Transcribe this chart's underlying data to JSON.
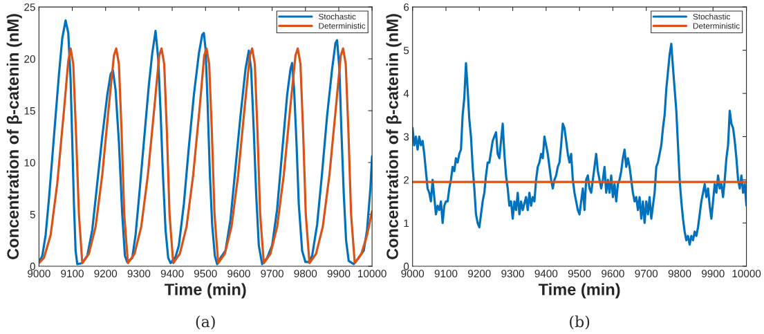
{
  "chart_data": [
    {
      "type": "line",
      "xlabel": "Time (min)",
      "ylabel": "Concentration of β-catenin (nM)",
      "xlim": [
        9000,
        10000
      ],
      "ylim": [
        0,
        25
      ],
      "xticks": [
        9000,
        9100,
        9200,
        9300,
        9400,
        9500,
        9600,
        9700,
        9800,
        9900,
        10000
      ],
      "yticks": [
        0,
        5,
        10,
        15,
        20,
        25
      ],
      "grid": false,
      "legend": "top right",
      "line_style": "solid",
      "marker": "none",
      "annotations": [
        "(a)"
      ],
      "series": [
        {
          "name": "Stochastic",
          "color": "#0072bd",
          "x": [
            9000,
            9010,
            9020,
            9030,
            9040,
            9050,
            9060,
            9070,
            9080,
            9088,
            9095,
            9100,
            9105,
            9110,
            9115,
            9130,
            9145,
            9160,
            9175,
            9190,
            9205,
            9215,
            9222,
            9230,
            9240,
            9250,
            9258,
            9265,
            9280,
            9290,
            9300,
            9315,
            9330,
            9340,
            9350,
            9358,
            9365,
            9372,
            9380,
            9388,
            9395,
            9410,
            9420,
            9435,
            9450,
            9465,
            9480,
            9490,
            9495,
            9500,
            9506,
            9513,
            9520,
            9528,
            9535,
            9545,
            9560,
            9575,
            9590,
            9605,
            9620,
            9630,
            9637,
            9645,
            9652,
            9660,
            9670,
            9685,
            9700,
            9715,
            9730,
            9745,
            9755,
            9760,
            9766,
            9773,
            9780,
            9790,
            9800,
            9810,
            9820,
            9835,
            9850,
            9865,
            9880,
            9890,
            9895,
            9902,
            9908,
            9915,
            9922,
            9930,
            9945,
            9960,
            9975,
            9985,
            9995,
            10000
          ],
          "values": [
            0.4,
            1,
            3,
            6.5,
            10.5,
            14.5,
            18.5,
            22,
            23.7,
            22.5,
            18,
            12,
            6,
            1.5,
            0.2,
            0.3,
            1,
            3.5,
            8,
            12.5,
            16.5,
            18.5,
            18.9,
            17,
            12,
            5,
            1,
            0.4,
            0.8,
            3,
            6.5,
            12,
            17.5,
            20.5,
            22.7,
            20,
            15,
            9,
            3.5,
            0.8,
            0.3,
            0.9,
            2,
            6,
            11.5,
            16.5,
            20.5,
            22.3,
            22.5,
            21,
            16,
            9,
            4,
            1,
            0.2,
            0.8,
            1.5,
            4.5,
            9.5,
            14.5,
            19,
            20.8,
            19,
            13,
            7,
            2,
            0.2,
            0.8,
            2,
            5.5,
            11,
            16.5,
            19,
            19.6,
            17,
            12,
            6,
            1.5,
            0.4,
            0.4,
            1,
            4,
            9,
            14.5,
            19,
            21.5,
            21.8,
            19,
            13,
            7,
            2.5,
            0.5,
            0.2,
            0.8,
            1.5,
            3.5,
            7.5,
            10.6
          ]
        },
        {
          "name": "Deterministic",
          "color": "#d95319",
          "x": [
            9000,
            9015,
            9035,
            9055,
            9075,
            9088,
            9095,
            9103,
            9111,
            9120,
            9130,
            9150,
            9170,
            9190,
            9210,
            9225,
            9232,
            9240,
            9248,
            9256,
            9267,
            9287,
            9307,
            9327,
            9347,
            9361,
            9368,
            9376,
            9384,
            9392,
            9403,
            9423,
            9443,
            9463,
            9483,
            9496,
            9503,
            9511,
            9519,
            9527,
            9538,
            9558,
            9578,
            9598,
            9618,
            9633,
            9640,
            9648,
            9656,
            9664,
            9675,
            9695,
            9715,
            9735,
            9755,
            9770,
            9777,
            9785,
            9793,
            9801,
            9812,
            9832,
            9852,
            9872,
            9892,
            9906,
            9913,
            9921,
            9929,
            9937,
            9948,
            9968,
            9985,
            10000
          ],
          "values": [
            0.3,
            0.8,
            3,
            8,
            15,
            19.8,
            21,
            19.5,
            13,
            5,
            0.3,
            1.2,
            3.8,
            8.8,
            15.5,
            20.3,
            21,
            19.5,
            13,
            5,
            0.3,
            1.2,
            3.8,
            8.8,
            15.5,
            20.3,
            21,
            19.5,
            13,
            5,
            0.3,
            1.2,
            3.8,
            8.8,
            15.5,
            20.3,
            21,
            19.5,
            13,
            5,
            0.3,
            1.2,
            3.8,
            8.8,
            15.5,
            20.3,
            21,
            19.5,
            13,
            5,
            0.3,
            1.2,
            3.8,
            8.8,
            15.5,
            20.3,
            21,
            19.5,
            13,
            5,
            0.3,
            1.2,
            3.8,
            8.8,
            15.5,
            20.3,
            21,
            19.5,
            13,
            5,
            0.3,
            1.2,
            3,
            5.3
          ]
        }
      ]
    },
    {
      "type": "line",
      "xlabel": "Time (min)",
      "ylabel": "Concentration of β-catenin (nM)",
      "xlim": [
        9000,
        10000
      ],
      "ylim": [
        0,
        6
      ],
      "xticks": [
        9000,
        9100,
        9200,
        9300,
        9400,
        9500,
        9600,
        9700,
        9800,
        9900,
        10000
      ],
      "yticks": [
        0,
        1,
        2,
        3,
        4,
        5,
        6
      ],
      "grid": false,
      "legend": "top right",
      "line_style": "solid",
      "marker": "none",
      "annotations": [
        "(b)"
      ],
      "series": [
        {
          "name": "Stochastic",
          "color": "#0072bd",
          "x": [
            9000,
            9005,
            9010,
            9015,
            9020,
            9025,
            9030,
            9035,
            9040,
            9045,
            9050,
            9055,
            9060,
            9065,
            9070,
            9075,
            9080,
            9085,
            9090,
            9095,
            9100,
            9105,
            9110,
            9115,
            9120,
            9125,
            9130,
            9135,
            9140,
            9145,
            9150,
            9155,
            9160,
            9165,
            9170,
            9175,
            9180,
            9185,
            9190,
            9195,
            9200,
            9205,
            9210,
            9215,
            9220,
            9225,
            9230,
            9240,
            9245,
            9250,
            9255,
            9260,
            9265,
            9270,
            9275,
            9280,
            9285,
            9290,
            9295,
            9300,
            9305,
            9310,
            9315,
            9320,
            9325,
            9330,
            9340,
            9345,
            9350,
            9355,
            9360,
            9365,
            9370,
            9375,
            9380,
            9385,
            9390,
            9395,
            9400,
            9405,
            9410,
            9415,
            9420,
            9425,
            9430,
            9435,
            9440,
            9445,
            9450,
            9455,
            9460,
            9465,
            9470,
            9475,
            9480,
            9485,
            9490,
            9495,
            9500,
            9505,
            9510,
            9515,
            9520,
            9525,
            9530,
            9535,
            9540,
            9545,
            9550,
            9555,
            9560,
            9565,
            9570,
            9575,
            9580,
            9585,
            9590,
            9595,
            9600,
            9605,
            9610,
            9615,
            9620,
            9625,
            9630,
            9635,
            9640,
            9645,
            9650,
            9655,
            9660,
            9665,
            9670,
            9675,
            9680,
            9685,
            9690,
            9695,
            9700,
            9705,
            9710,
            9715,
            9720,
            9725,
            9730,
            9735,
            9740,
            9745,
            9750,
            9755,
            9760,
            9765,
            9770,
            9775,
            9780,
            9785,
            9790,
            9795,
            9800,
            9805,
            9810,
            9815,
            9820,
            9825,
            9830,
            9835,
            9840,
            9845,
            9850,
            9855,
            9860,
            9865,
            9870,
            9875,
            9880,
            9885,
            9890,
            9895,
            9900,
            9905,
            9910,
            9915,
            9920,
            9925,
            9930,
            9935,
            9940,
            9945,
            9950,
            9955,
            9960,
            9965,
            9970,
            9975,
            9980,
            9985,
            9990,
            9995,
            10000
          ],
          "values": [
            3.2,
            2.8,
            3.0,
            2.7,
            3.0,
            2.8,
            2.9,
            2.6,
            2.2,
            1.8,
            1.7,
            1.5,
            2.0,
            1.6,
            1.2,
            1.4,
            1.3,
            1.5,
            1.0,
            1.4,
            1.5,
            1.5,
            1.8,
            2.0,
            2.3,
            2.2,
            2.5,
            2.4,
            2.6,
            2.7,
            3.5,
            3.9,
            4.7,
            4.1,
            3.4,
            3.0,
            2.3,
            1.8,
            1.2,
            1.0,
            0.9,
            1.2,
            1.5,
            1.7,
            2.1,
            2.4,
            2.4,
            2.9,
            3.0,
            3.1,
            2.6,
            2.5,
            2.9,
            3.3,
            2.6,
            2.1,
            1.8,
            1.4,
            1.5,
            1.1,
            1.5,
            1.3,
            1.7,
            1.2,
            1.5,
            1.3,
            1.6,
            1.3,
            1.7,
            1.4,
            1.6,
            1.5,
            2.0,
            2.3,
            2.4,
            2.6,
            2.5,
            3.0,
            2.8,
            2.6,
            2.3,
            2.0,
            1.8,
            2.0,
            2.1,
            2.3,
            2.4,
            2.8,
            3.3,
            3.2,
            2.9,
            2.6,
            2.4,
            2.6,
            2.0,
            1.7,
            1.5,
            1.3,
            1.2,
            1.5,
            1.8,
            1.3,
            2.0,
            2.1,
            1.8,
            1.7,
            2.0,
            2.3,
            2.6,
            2.2,
            2.0,
            1.8,
            2.0,
            2.3,
            1.7,
            2.0,
            1.7,
            2.1,
            1.6,
            1.9,
            1.5,
            1.9,
            2.0,
            2.2,
            2.5,
            2.7,
            2.3,
            2.5,
            2.3,
            2.0,
            1.7,
            1.5,
            1.6,
            1.3,
            1.6,
            1.1,
            1.5,
            1.0,
            1.5,
            1.2,
            1.6,
            1.1,
            1.4,
            1.7,
            2.3,
            2.4,
            2.6,
            2.8,
            3.2,
            3.5,
            4.1,
            4.5,
            4.9,
            5.15,
            4.6,
            4.1,
            3.6,
            2.8,
            2.0,
            1.5,
            1.1,
            0.8,
            0.6,
            0.7,
            0.5,
            0.7,
            0.6,
            0.8,
            0.7,
            0.9,
            1.2,
            1.5,
            1.7,
            1.9,
            1.6,
            1.8,
            1.4,
            1.1,
            1.5,
            1.9,
            1.7,
            2.1,
            1.8,
            1.9,
            1.6,
            2.0,
            2.5,
            2.8,
            3.6,
            3.3,
            3.2,
            2.9,
            2.5,
            2.0,
            1.8,
            2.1,
            1.7,
            1.9,
            1.4
          ]
        },
        {
          "name": "Deterministic",
          "color": "#d95319",
          "x": [
            9000,
            10000
          ],
          "values": [
            1.95,
            1.95
          ]
        }
      ]
    }
  ]
}
